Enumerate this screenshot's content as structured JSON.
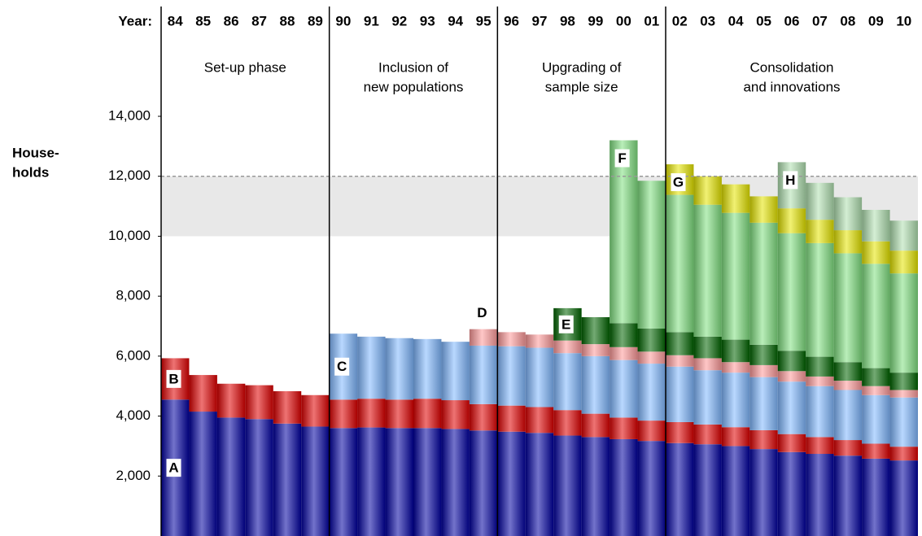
{
  "chart_data": {
    "type": "stacked_bar",
    "year_label": "Year:",
    "y_label": [
      "House-",
      "holds"
    ],
    "categories": [
      "84",
      "85",
      "86",
      "87",
      "88",
      "89",
      "90",
      "91",
      "92",
      "93",
      "94",
      "95",
      "96",
      "97",
      "98",
      "99",
      "00",
      "01",
      "02",
      "03",
      "04",
      "05",
      "06",
      "07",
      "08",
      "09",
      "10"
    ],
    "phases": [
      [
        "Set-up phase"
      ],
      [
        "Inclusion of",
        "new populations"
      ],
      [
        "Upgrading of",
        "sample size"
      ],
      [
        "Consolidation",
        "and innovations"
      ]
    ],
    "ylim": [
      0,
      14000
    ],
    "yticks": [
      {
        "value": 2000,
        "label": "2,000"
      },
      {
        "value": 4000,
        "label": "4,000"
      },
      {
        "value": 6000,
        "label": "6,000"
      },
      {
        "value": 8000,
        "label": "8,000"
      },
      {
        "value": 10000,
        "label": "10,000"
      },
      {
        "value": 12000,
        "label": "12,000"
      },
      {
        "value": 14000,
        "label": "14,000"
      }
    ],
    "shaded_range": [
      10000,
      12000
    ],
    "reference_line": 12000,
    "series": [
      {
        "name": "A",
        "color": "#0000a0",
        "values": [
          4550,
          4150,
          3950,
          3900,
          3750,
          3650,
          3600,
          3620,
          3600,
          3600,
          3570,
          3520,
          3480,
          3440,
          3350,
          3300,
          3230,
          3170,
          3100,
          3060,
          3000,
          2900,
          2800,
          2740,
          2680,
          2580,
          2520
        ]
      },
      {
        "name": "B",
        "color": "#e00000",
        "values": [
          1380,
          1220,
          1130,
          1130,
          1080,
          1050,
          950,
          960,
          950,
          980,
          960,
          880,
          870,
          860,
          850,
          780,
          720,
          680,
          700,
          660,
          630,
          630,
          600,
          560,
          520,
          500,
          460
        ]
      },
      {
        "name": "C",
        "color": "#80b8ff",
        "values": [
          null,
          null,
          null,
          null,
          null,
          null,
          2200,
          2070,
          2050,
          1990,
          1950,
          1950,
          1980,
          1980,
          1900,
          1920,
          1920,
          1900,
          1850,
          1810,
          1820,
          1770,
          1750,
          1700,
          1670,
          1620,
          1640
        ]
      },
      {
        "name": "D",
        "color": "#ff9a9a",
        "values": [
          null,
          null,
          null,
          null,
          null,
          null,
          null,
          null,
          null,
          null,
          null,
          550,
          470,
          440,
          420,
          400,
          430,
          400,
          380,
          400,
          350,
          400,
          350,
          320,
          310,
          300,
          250
        ]
      },
      {
        "name": "E",
        "color": "#006400",
        "values": [
          null,
          null,
          null,
          null,
          null,
          null,
          null,
          null,
          null,
          null,
          null,
          null,
          null,
          null,
          1080,
          900,
          800,
          770,
          770,
          720,
          750,
          680,
          680,
          660,
          620,
          600,
          580
        ]
      },
      {
        "name": "F",
        "color": "#80e080",
        "values": [
          null,
          null,
          null,
          null,
          null,
          null,
          null,
          null,
          null,
          null,
          null,
          null,
          null,
          null,
          null,
          null,
          6100,
          4930,
          4580,
          4400,
          4230,
          4070,
          3920,
          3790,
          3630,
          3480,
          3310
        ]
      },
      {
        "name": "G",
        "color": "#e6e600",
        "values": [
          null,
          null,
          null,
          null,
          null,
          null,
          null,
          null,
          null,
          null,
          null,
          null,
          null,
          null,
          null,
          null,
          null,
          null,
          1020,
          950,
          950,
          880,
          830,
          780,
          770,
          750,
          760
        ]
      },
      {
        "name": "H",
        "color": "#b0e0b0",
        "values": [
          null,
          null,
          null,
          null,
          null,
          null,
          null,
          null,
          null,
          null,
          null,
          null,
          null,
          null,
          null,
          null,
          null,
          null,
          null,
          null,
          null,
          null,
          1540,
          1230,
          1100,
          1050,
          1000
        ]
      }
    ]
  }
}
